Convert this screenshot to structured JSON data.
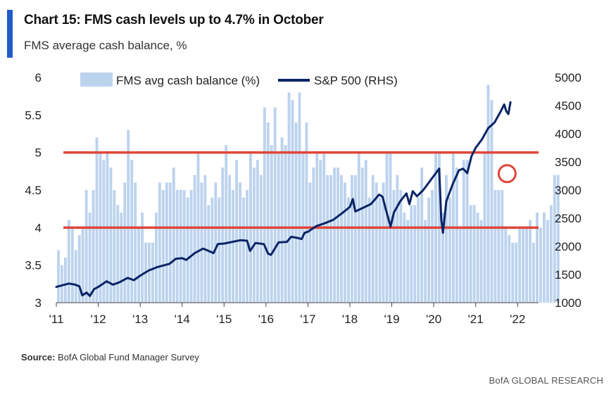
{
  "header": {
    "title": "Chart 15: FMS cash levels up to 4.7% in October",
    "subtitle": "FMS average cash balance, %"
  },
  "footer": {
    "source_label": "Source:",
    "source_text": "BofA Global Fund Manager Survey",
    "brand": "BofA GLOBAL RESEARCH"
  },
  "colors": {
    "bars": "#bcd3ee",
    "line": "#0b2466",
    "reference_lines": "#e0463a",
    "circle": "#e0463a",
    "accent": "#1f5cc8"
  },
  "chart_data": {
    "type": "bar+line",
    "title": "Chart 15: FMS cash levels up to 4.7% in October",
    "subtitle": "FMS average cash balance, %",
    "x_tick_labels": [
      "'11",
      "'12",
      "'13",
      "'14",
      "'15",
      "'16",
      "'17",
      "'18",
      "'19",
      "'20",
      "'21",
      "'22"
    ],
    "x_range": [
      2011.0,
      2022.5
    ],
    "y_left": {
      "label": "FMS avg cash balance (%)",
      "range": [
        3,
        6
      ],
      "ticks": [
        "3",
        "3.5",
        "4",
        "4.5",
        "5",
        "5.5",
        "6"
      ]
    },
    "y_right": {
      "label": "S&P 500 (RHS)",
      "range": [
        1000,
        5000
      ],
      "ticks": [
        "1000",
        "1500",
        "2000",
        "2500",
        "3000",
        "3500",
        "4000",
        "4500",
        "5000"
      ]
    },
    "legend": [
      "FMS avg cash balance (%)",
      "S&P 500 (RHS)"
    ],
    "reference_lines": [
      5.0,
      4.0
    ],
    "highlight": {
      "x": 2021.75,
      "y": 4.7
    },
    "series": [
      {
        "name": "FMS avg cash balance (%)",
        "axis": "left",
        "kind": "bar",
        "start": 2011.0,
        "step_months": 1,
        "values": [
          3.7,
          3.5,
          3.6,
          4.1,
          4.0,
          3.7,
          3.9,
          4.0,
          4.5,
          4.2,
          4.5,
          5.2,
          5.0,
          4.9,
          5.0,
          4.8,
          4.5,
          4.3,
          4.2,
          4.6,
          5.3,
          4.9,
          4.6,
          4.0,
          4.2,
          3.8,
          3.8,
          3.8,
          4.2,
          4.6,
          4.5,
          4.6,
          4.6,
          4.8,
          4.5,
          4.5,
          4.5,
          4.4,
          4.5,
          4.7,
          5.0,
          4.6,
          4.7,
          4.3,
          4.4,
          4.6,
          4.4,
          4.8,
          5.1,
          4.7,
          4.5,
          4.9,
          4.6,
          4.4,
          4.5,
          5.0,
          4.8,
          4.9,
          4.7,
          5.6,
          5.4,
          5.1,
          5.6,
          5.0,
          5.2,
          5.1,
          5.8,
          5.7,
          5.4,
          5.8,
          5.0,
          5.4,
          4.6,
          4.8,
          5.0,
          4.9,
          5.0,
          4.7,
          4.7,
          4.8,
          4.8,
          4.7,
          4.6,
          4.4,
          4.7,
          4.7,
          5.0,
          4.8,
          4.9,
          4.4,
          4.7,
          4.6,
          4.4,
          4.6,
          5.0,
          5.0,
          4.5,
          4.7,
          4.5,
          4.2,
          4.1,
          4.3,
          4.3,
          4.4,
          4.8,
          4.1,
          4.4,
          4.5,
          5.0,
          5.0,
          4.2,
          4.7,
          4.4,
          5.0,
          4.8,
          4.0,
          4.9,
          4.9,
          4.3,
          4.3,
          4.2,
          4.1,
          5.0,
          5.9,
          5.7,
          4.5,
          4.5,
          4.5,
          4.0,
          3.9,
          3.8,
          3.8,
          4.0,
          4.0,
          4.0,
          4.1,
          3.8,
          4.2,
          4.0,
          4.2,
          4.1,
          4.3,
          4.7,
          4.7
        ]
      },
      {
        "name": "S&P 500 (RHS)",
        "axis": "right",
        "kind": "line",
        "points": [
          [
            2011.0,
            1280
          ],
          [
            2011.15,
            1310
          ],
          [
            2011.3,
            1340
          ],
          [
            2011.45,
            1320
          ],
          [
            2011.55,
            1290
          ],
          [
            2011.62,
            1130
          ],
          [
            2011.72,
            1180
          ],
          [
            2011.8,
            1120
          ],
          [
            2011.9,
            1240
          ],
          [
            2012.0,
            1280
          ],
          [
            2012.2,
            1380
          ],
          [
            2012.35,
            1320
          ],
          [
            2012.5,
            1360
          ],
          [
            2012.7,
            1440
          ],
          [
            2012.85,
            1400
          ],
          [
            2013.0,
            1480
          ],
          [
            2013.2,
            1570
          ],
          [
            2013.4,
            1630
          ],
          [
            2013.55,
            1660
          ],
          [
            2013.7,
            1690
          ],
          [
            2013.85,
            1780
          ],
          [
            2014.0,
            1790
          ],
          [
            2014.1,
            1760
          ],
          [
            2014.3,
            1880
          ],
          [
            2014.5,
            1960
          ],
          [
            2014.6,
            1930
          ],
          [
            2014.75,
            1880
          ],
          [
            2014.85,
            2040
          ],
          [
            2015.0,
            2050
          ],
          [
            2015.2,
            2080
          ],
          [
            2015.4,
            2110
          ],
          [
            2015.55,
            2100
          ],
          [
            2015.62,
            1920
          ],
          [
            2015.75,
            2060
          ],
          [
            2015.95,
            2040
          ],
          [
            2016.05,
            1870
          ],
          [
            2016.12,
            1850
          ],
          [
            2016.3,
            2070
          ],
          [
            2016.5,
            2080
          ],
          [
            2016.6,
            2170
          ],
          [
            2016.75,
            2150
          ],
          [
            2016.85,
            2130
          ],
          [
            2016.92,
            2240
          ],
          [
            2017.0,
            2260
          ],
          [
            2017.2,
            2360
          ],
          [
            2017.4,
            2410
          ],
          [
            2017.6,
            2470
          ],
          [
            2017.8,
            2580
          ],
          [
            2018.0,
            2700
          ],
          [
            2018.07,
            2840
          ],
          [
            2018.13,
            2620
          ],
          [
            2018.3,
            2680
          ],
          [
            2018.5,
            2750
          ],
          [
            2018.7,
            2920
          ],
          [
            2018.78,
            2880
          ],
          [
            2018.85,
            2680
          ],
          [
            2018.97,
            2350
          ],
          [
            2019.05,
            2600
          ],
          [
            2019.2,
            2800
          ],
          [
            2019.35,
            2940
          ],
          [
            2019.42,
            2750
          ],
          [
            2019.5,
            2980
          ],
          [
            2019.6,
            2890
          ],
          [
            2019.75,
            3000
          ],
          [
            2019.9,
            3150
          ],
          [
            2020.05,
            3300
          ],
          [
            2020.13,
            3380
          ],
          [
            2020.18,
            2480
          ],
          [
            2020.22,
            2240
          ],
          [
            2020.3,
            2800
          ],
          [
            2020.45,
            3100
          ],
          [
            2020.6,
            3350
          ],
          [
            2020.7,
            3380
          ],
          [
            2020.8,
            3300
          ],
          [
            2020.9,
            3600
          ],
          [
            2021.0,
            3750
          ],
          [
            2021.15,
            3900
          ],
          [
            2021.3,
            4100
          ],
          [
            2021.45,
            4200
          ],
          [
            2021.6,
            4400
          ],
          [
            2021.68,
            4520
          ],
          [
            2021.73,
            4400
          ],
          [
            2021.78,
            4350
          ],
          [
            2021.83,
            4560
          ]
        ]
      }
    ]
  }
}
